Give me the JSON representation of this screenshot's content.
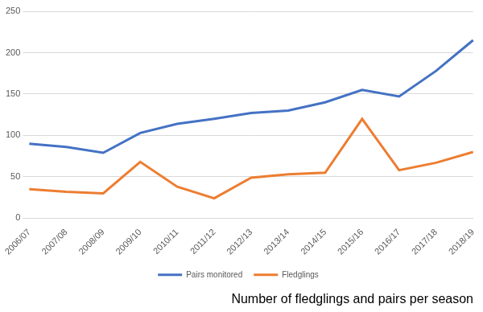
{
  "chart_data": {
    "type": "line",
    "title": "Number of fledglings and pairs per season",
    "categories": [
      "2006/07",
      "2007/08",
      "2008/09",
      "2009/10",
      "2010/11",
      "2011/12",
      "2012/13",
      "2013/14",
      "2014/15",
      "2015/16",
      "2016/17",
      "2017/18",
      "2018/19"
    ],
    "series": [
      {
        "name": "Pairs monitored",
        "color": "#4472c4",
        "values": [
          90,
          86,
          79,
          103,
          114,
          120,
          127,
          130,
          140,
          155,
          147,
          178,
          215
        ]
      },
      {
        "name": "Fledglings",
        "color": "#ed7d31",
        "values": [
          35,
          32,
          30,
          68,
          38,
          24,
          49,
          53,
          55,
          120,
          58,
          67,
          80
        ]
      }
    ],
    "ylim": [
      0,
      250
    ],
    "yticks": [
      0,
      50,
      100,
      150,
      200,
      250
    ],
    "grid": true,
    "legend": "bottom",
    "marker": "none"
  }
}
